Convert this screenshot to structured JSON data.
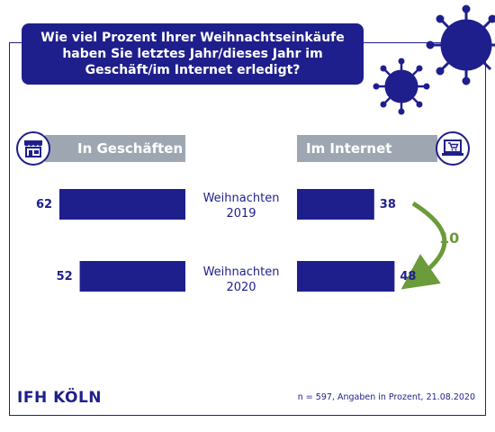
{
  "title": "Wie viel Prozent Ihrer Weihnachtseinkäufe\nhaben Sie letztes Jahr/dieses Jahr im\nGeschäft/im Internet erledigt?",
  "brand": "IFH KÖLN",
  "footnote": "n = 597, Angaben in Prozent, 21.08.2020",
  "colors": {
    "primary": "#1e1f8c",
    "header_gray": "#9ea7b1",
    "arrow_green": "#6b9b3a"
  },
  "icons": {
    "left": "store-icon",
    "right": "laptop-cart-icon",
    "decor": "virus-icon"
  },
  "chart_data": {
    "type": "bar",
    "categories": [
      "Weihnachten 2019",
      "Weihnachten 2020"
    ],
    "category_lines": [
      [
        "Weihnachten",
        "2019"
      ],
      [
        "Weihnachten",
        "2020"
      ]
    ],
    "series": [
      {
        "name": "In Geschäften",
        "values": [
          62,
          52
        ]
      },
      {
        "name": "Im Internet",
        "values": [
          38,
          48
        ]
      }
    ],
    "annotation": {
      "label": "10",
      "from": "Weihnachten 2019",
      "to": "Weihnachten 2020",
      "series": "Im Internet"
    }
  }
}
